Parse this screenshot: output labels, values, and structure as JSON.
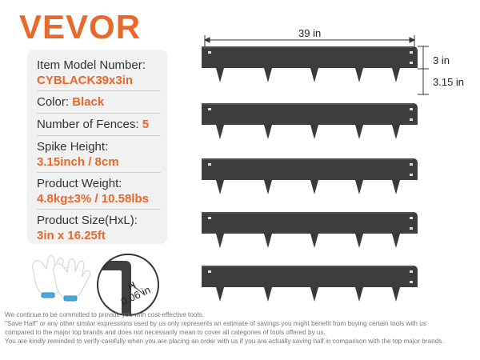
{
  "brand": "VEVOR",
  "specs": {
    "model_label": "Item Model Number:",
    "model_value": "CYBLACK39x3in",
    "color_label": "Color: ",
    "color_value": "Black",
    "fences_label": "Number of Fences: ",
    "fences_value": "5",
    "spike_label": "Spike Height:",
    "spike_value": "3.15inch / 8cm",
    "weight_label": "Product Weight:",
    "weight_value": "4.8kg±3% / 10.58lbs",
    "size_label": "Product Size(HxL):",
    "size_value": "3in x 16.25ft"
  },
  "dimensions": {
    "length": "39 in",
    "height": "3 in",
    "spike": "3.15 in",
    "thickness_h": "H",
    "thickness": "0.06 in"
  },
  "disclaimer": [
    "We continue to be committed to provide you with cost-effective tools.",
    "\"Save Half\" or any other similar expressions used by us only represents an estimate of savings you might benefit from buying certain tools with us",
    "compared to the major top brands and does not necessarily mean to cover all categories of tools offered by us.",
    "You are kindly reminded to verify carefully when you are placing an order with us if you are actually saving half in comparison with the top major brands."
  ]
}
